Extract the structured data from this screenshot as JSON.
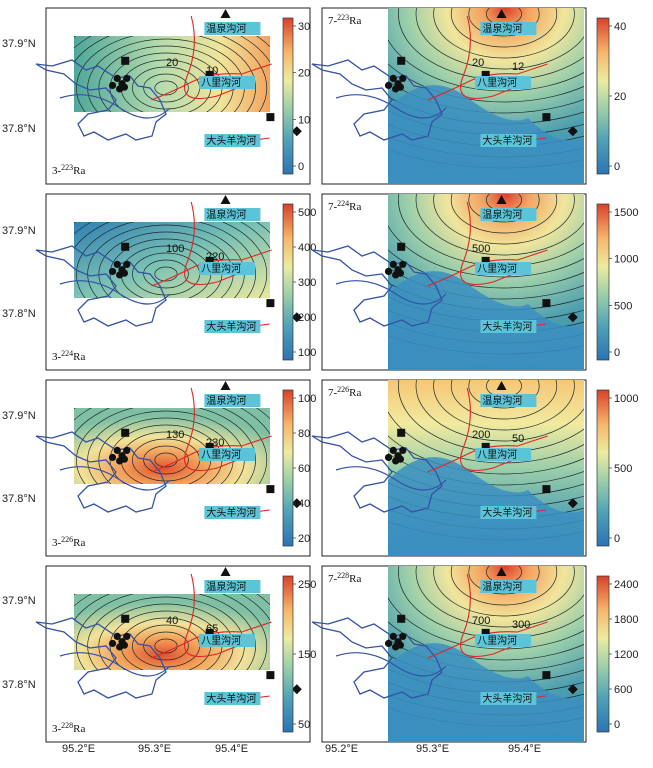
{
  "figure": {
    "y_axis_labels": [
      "37.9°N",
      "37.8°N"
    ],
    "x_axis_labels": [
      "95.2°E",
      "95.3°E",
      "95.4°E"
    ],
    "river_labels": {
      "wenquan": "温泉沟河",
      "bali": "八里沟河",
      "datou": "大头羊沟河"
    }
  },
  "panels": [
    {
      "id": "p1",
      "tag_prefix": "3-",
      "tag_sup": "223",
      "tag_element": "Ra",
      "side": "left",
      "colorbar_ticks": [
        "30",
        "20",
        "10",
        "0"
      ],
      "contour_labels": [
        "20",
        "10"
      ]
    },
    {
      "id": "p2",
      "tag_prefix": "7-",
      "tag_sup": "223",
      "tag_element": "Ra",
      "side": "right",
      "colorbar_ticks": [
        "40",
        "20",
        "0"
      ],
      "contour_labels": [
        "20",
        "12"
      ]
    },
    {
      "id": "p3",
      "tag_prefix": "3-",
      "tag_sup": "224",
      "tag_element": "Ra",
      "side": "left",
      "colorbar_ticks": [
        "500",
        "400",
        "300",
        "200",
        "100"
      ],
      "contour_labels": [
        "100",
        "220"
      ]
    },
    {
      "id": "p4",
      "tag_prefix": "7-",
      "tag_sup": "224",
      "tag_element": "Ra",
      "side": "right",
      "colorbar_ticks": [
        "1500",
        "1000",
        "500",
        "0"
      ],
      "contour_labels": [
        "500"
      ]
    },
    {
      "id": "p5",
      "tag_prefix": "3-",
      "tag_sup": "226",
      "tag_element": "Ra",
      "side": "left",
      "colorbar_ticks": [
        "100",
        "80",
        "60",
        "40",
        "20"
      ],
      "contour_labels": [
        "130",
        "230"
      ]
    },
    {
      "id": "p6",
      "tag_prefix": "7-",
      "tag_sup": "226",
      "tag_element": "Ra",
      "side": "right",
      "colorbar_ticks": [
        "1000",
        "500",
        "0"
      ],
      "contour_labels": [
        "200",
        "50"
      ]
    },
    {
      "id": "p7",
      "tag_prefix": "3-",
      "tag_sup": "228",
      "tag_element": "Ra",
      "side": "left",
      "colorbar_ticks": [
        "250",
        "150",
        "50"
      ],
      "contour_labels": [
        "40",
        "65"
      ]
    },
    {
      "id": "p8",
      "tag_prefix": "7-",
      "tag_sup": "228",
      "tag_element": "Ra",
      "side": "right",
      "colorbar_ticks": [
        "2400",
        "1800",
        "1200",
        "600",
        "0"
      ],
      "contour_labels": [
        "700",
        "300"
      ]
    }
  ]
}
